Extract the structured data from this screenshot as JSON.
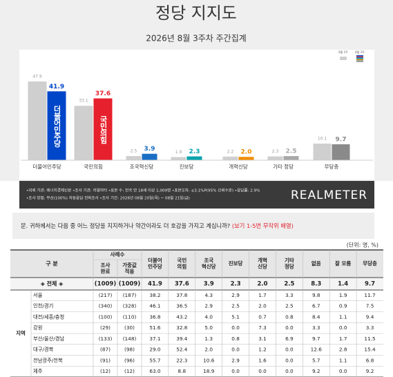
{
  "header": {
    "title": "정당 지지도",
    "subtitle": "2026년 8월 3주차 주간집계"
  },
  "chart_data": {
    "type": "bar",
    "categories": [
      "더불어민주당",
      "국민의힘",
      "조국혁신당",
      "진보당",
      "개혁신당",
      "기타 정당",
      "무당층"
    ],
    "series": [
      {
        "name": "8월 2주",
        "color": "#cfcfcf",
        "values": [
          47.9,
          33.1,
          2.5,
          1.9,
          2.2,
          2.3,
          10.1
        ]
      },
      {
        "name": "8월 3주",
        "colors": [
          "#0046c8",
          "#e6202c",
          "#1a6fc4",
          "#00a3ad",
          "#f28c00",
          "#a8a8a8",
          "#8a8a8a"
        ],
        "values": [
          41.9,
          37.6,
          3.9,
          2.3,
          2.0,
          2.5,
          9.7
        ],
        "value_labels": [
          "41.9",
          "37.6",
          "3.9",
          "2.3",
          "2.0",
          "2.5",
          "9.7"
        ]
      }
    ]
  },
  "notes": [
    "•의뢰 기관: 에너지경제신문  •조사 기관: 리얼미터  •표본 수: 전국 만 18세 이상 1,009명  •표본오차: ±3.1%P(95% 신뢰수준)  •응답률: 2.9%",
    "•조사 방법: 무선(100%) 자동응답 전화조사  •조사 기간: 2026년 08월 20일(목) ~ 08월 21일(금)"
  ],
  "logo": "REALMETER",
  "question": {
    "text": "문.  귀하께서는 다음 중 어느 정당을 지지하거나 약간이라도 더 호감을 가지고 계십니까? ",
    "note": "(보기 1-5번 무작위 배열)"
  },
  "unit": "(단위: 명, %)",
  "table": {
    "header": {
      "group": "구  분",
      "sample": "사례수",
      "sample_cols": [
        [
          "조사",
          "완료"
        ],
        [
          "가중값",
          "적용"
        ]
      ],
      "columns": [
        [
          "더불어",
          "민주당"
        ],
        [
          "국민",
          "의힘"
        ],
        [
          "조국",
          "혁신당"
        ],
        [
          "진보당"
        ],
        [
          "개혁",
          "신당"
        ],
        [
          "기타",
          "정당"
        ],
        [
          "없음"
        ],
        [
          "잘 모름"
        ],
        [
          "무당층"
        ]
      ]
    },
    "total": {
      "label": "◈ 전체 ◈",
      "cells": [
        "(1009)",
        "(1009)",
        "41.9",
        "37.6",
        "3.9",
        "2.3",
        "2.0",
        "2.5",
        "8.3",
        "1.4",
        "9.7"
      ]
    },
    "region_label": "지역",
    "rows": [
      {
        "label": "서울",
        "cells": [
          "(217)",
          "(187)",
          "38.2",
          "37.8",
          "4.3",
          "2.9",
          "1.7",
          "3.3",
          "9.8",
          "1.9",
          "11.7"
        ]
      },
      {
        "label": "인천/경기",
        "cells": [
          "(340)",
          "(328)",
          "46.1",
          "36.5",
          "2.9",
          "2.5",
          "2.0",
          "2.5",
          "6.7",
          "0.9",
          "7.5"
        ]
      },
      {
        "label": "대전/세종/충청",
        "cells": [
          "(100)",
          "(110)",
          "36.8",
          "43.2",
          "4.0",
          "5.1",
          "0.7",
          "0.8",
          "8.4",
          "1.1",
          "9.4"
        ]
      },
      {
        "label": "강원",
        "cells": [
          "(29)",
          "(30)",
          "51.6",
          "32.8",
          "5.0",
          "0.0",
          "7.3",
          "0.0",
          "3.3",
          "0.0",
          "3.3"
        ]
      },
      {
        "label": "부산/울산/경남",
        "cells": [
          "(133)",
          "(148)",
          "37.1",
          "39.4",
          "1.3",
          "0.8",
          "3.1",
          "6.9",
          "9.7",
          "1.7",
          "11.5"
        ]
      },
      {
        "label": "대구/경북",
        "cells": [
          "(87)",
          "(98)",
          "29.0",
          "52.4",
          "2.0",
          "0.0",
          "1.2",
          "0.0",
          "12.6",
          "2.8",
          "15.4"
        ]
      },
      {
        "label": "전남광주/전북",
        "cells": [
          "(91)",
          "(96)",
          "55.7",
          "22.3",
          "10.6",
          "2.9",
          "1.6",
          "0.0",
          "5.7",
          "1.1",
          "6.8"
        ]
      },
      {
        "label": "제주",
        "cells": [
          "(12)",
          "(12)",
          "63.0",
          "8.8",
          "18.9",
          "0.0",
          "0.0",
          "0.0",
          "9.2",
          "0.0",
          "9.2"
        ]
      }
    ]
  }
}
